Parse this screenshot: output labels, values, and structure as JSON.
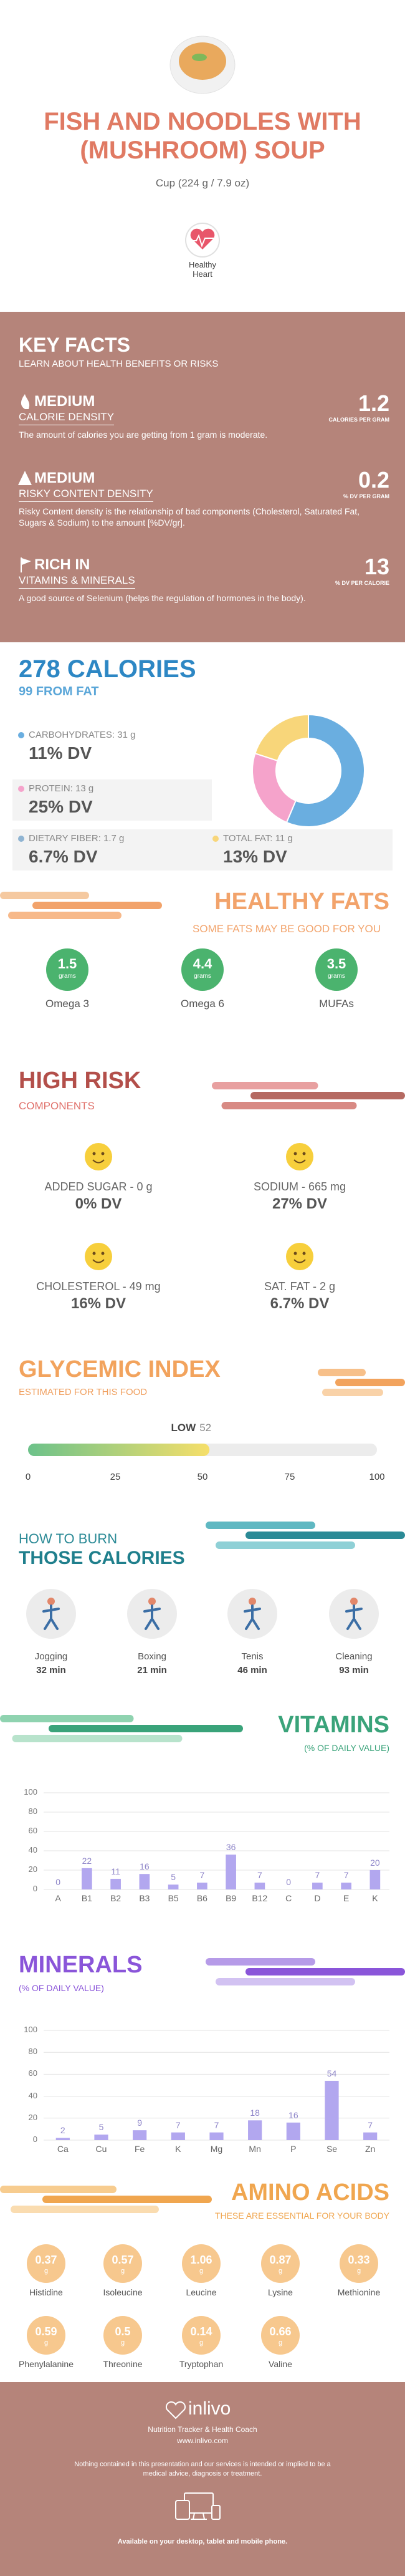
{
  "header": {
    "title": "FISH AND NOODLES WITH (MUSHROOM) SOUP",
    "serving": "Cup (224 g / 7.9 oz)",
    "badge": "Healthy Heart"
  },
  "key_facts": {
    "title": "KEY FACTS",
    "subtitle": "LEARN ABOUT HEALTH BENEFITS OR RISKS",
    "items": [
      {
        "level": "MEDIUM",
        "name": "CALORIE DENSITY",
        "value": 1.2,
        "unit": "CALORIES PER GRAM",
        "description": "The amount of calories you are getting from 1 gram is moderate."
      },
      {
        "level": "MEDIUM",
        "name": "RISKY CONTENT DENSITY",
        "value": 0.2,
        "unit": "% DV PER GRAM",
        "description": "Risky Content density is the relationship of bad components (Cholesterol, Saturated Fat, Sugars & Sodium) to the amount [%DV/gr]."
      },
      {
        "level": "RICH IN",
        "name": "VITAMINS & MINERALS",
        "value": 13,
        "unit": "% DV PER CALORIE",
        "description": "A good source of Selenium (helps the regulation of hormones in the body)."
      }
    ]
  },
  "calories": {
    "title": "278 CALORIES",
    "subtitle": "99 FROM FAT",
    "nutrients": [
      {
        "label": "CARBOHYDRATES: 31 g",
        "grams": 31,
        "dv": "11% DV",
        "color": "#6aaee0"
      },
      {
        "label": "PROTEIN: 13 g",
        "grams": 13,
        "dv": "25% DV",
        "color": "#f5a3cb"
      },
      {
        "label": "DIETARY FIBER: 1.7 g",
        "dv": "6.7% DV",
        "color": "#8fb4d2"
      },
      {
        "label": "TOTAL FAT: 11 g",
        "grams": 11,
        "dv": "13% DV",
        "color": "#f8d67a"
      }
    ]
  },
  "healthy_fats": {
    "title": "HEALTHY FATS",
    "subtitle": "SOME FATS MAY BE GOOD FOR YOU",
    "items": [
      {
        "amount": 1.5,
        "unit": "grams",
        "name": "Omega 3"
      },
      {
        "amount": 4.4,
        "unit": "grams",
        "name": "Omega 6"
      },
      {
        "amount": 3.5,
        "unit": "grams",
        "name": "MUFAs"
      }
    ]
  },
  "high_risk": {
    "title": "HIGH RISK",
    "subtitle": "COMPONENTS",
    "items": [
      {
        "label": "ADDED SUGAR - 0 g",
        "dv": "0% DV"
      },
      {
        "label": "SODIUM - 665 mg",
        "dv": "27% DV"
      },
      {
        "label": "CHOLESTEROL - 49 mg",
        "dv": "16% DV"
      },
      {
        "label": "SAT. FAT - 2 g",
        "dv": "6.7% DV"
      }
    ]
  },
  "glycemic_index": {
    "title": "GLYCEMIC INDEX",
    "subtitle": "ESTIMATED FOR THIS FOOD",
    "level": "LOW",
    "value": 52,
    "xlim": [
      0,
      100
    ],
    "xticks": [
      0,
      25,
      50,
      75,
      100
    ]
  },
  "burn": {
    "title_small": "HOW TO BURN",
    "title": "THOSE CALORIES",
    "activities": [
      {
        "name": "Jogging",
        "time": "32 min"
      },
      {
        "name": "Boxing",
        "time": "21 min"
      },
      {
        "name": "Tenis",
        "time": "46 min"
      },
      {
        "name": "Cleaning",
        "time": "93 min"
      }
    ]
  },
  "vitamins": {
    "type": "bar",
    "title": "VITAMINS",
    "subtitle": "(% OF DAILY VALUE)",
    "categories": [
      "A",
      "B1",
      "B2",
      "B3",
      "B5",
      "B6",
      "B9",
      "B12",
      "C",
      "D",
      "E",
      "K"
    ],
    "values": [
      0,
      22,
      11,
      16,
      5,
      7,
      36,
      7,
      0,
      7,
      7,
      20
    ],
    "color": "#b2a7ef",
    "ylim": [
      0,
      100
    ],
    "yticks": [
      0,
      20,
      40,
      60,
      80,
      100
    ],
    "grid": true
  },
  "minerals": {
    "type": "bar",
    "title": "MINERALS",
    "subtitle": "(% OF DAILY VALUE)",
    "categories": [
      "Ca",
      "Cu",
      "Fe",
      "K",
      "Mg",
      "Mn",
      "P",
      "Se",
      "Zn"
    ],
    "values": [
      2,
      5,
      9,
      7,
      7,
      18,
      16,
      54,
      7
    ],
    "color": "#b2a7ef",
    "ylim": [
      0,
      100
    ],
    "yticks": [
      0,
      20,
      40,
      60,
      80,
      100
    ],
    "grid": true
  },
  "amino_acids": {
    "title": "AMINO ACIDS",
    "subtitle": "THESE ARE ESSENTIAL FOR YOUR BODY",
    "unit": "g",
    "items": [
      {
        "name": "Histidine",
        "amount": 0.37
      },
      {
        "name": "Isoleucine",
        "amount": 0.57
      },
      {
        "name": "Leucine",
        "amount": 1.06
      },
      {
        "name": "Lysine",
        "amount": 0.87
      },
      {
        "name": "Methionine",
        "amount": 0.33
      },
      {
        "name": "Phenylalanine",
        "amount": 0.59
      },
      {
        "name": "Threonine",
        "amount": 0.5
      },
      {
        "name": "Tryptophan",
        "amount": 0.14
      },
      {
        "name": "Valine",
        "amount": 0.66
      }
    ]
  },
  "footer": {
    "brand": "inlivo",
    "tagline": "Nutrition Tracker & Health Coach",
    "url": "www.inlivo.com",
    "disclaimer": "Nothing contained in this presentation and our services is intended or implied to be a medical advice, diagnosis or treatment.",
    "availability": "Available on your desktop, tablet and mobile phone."
  }
}
